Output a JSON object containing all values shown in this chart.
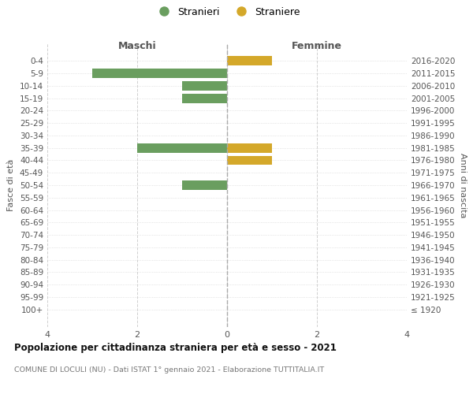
{
  "age_groups": [
    "0-4",
    "5-9",
    "10-14",
    "15-19",
    "20-24",
    "25-29",
    "30-34",
    "35-39",
    "40-44",
    "45-49",
    "50-54",
    "55-59",
    "60-64",
    "65-69",
    "70-74",
    "75-79",
    "80-84",
    "85-89",
    "90-94",
    "95-99",
    "100+"
  ],
  "birth_years": [
    "2016-2020",
    "2011-2015",
    "2006-2010",
    "2001-2005",
    "1996-2000",
    "1991-1995",
    "1986-1990",
    "1981-1985",
    "1976-1980",
    "1971-1975",
    "1966-1970",
    "1961-1965",
    "1956-1960",
    "1951-1955",
    "1946-1950",
    "1941-1945",
    "1936-1940",
    "1931-1935",
    "1926-1930",
    "1921-1925",
    "≤ 1920"
  ],
  "maschi_values": [
    0,
    3,
    1,
    1,
    0,
    0,
    0,
    2,
    0,
    0,
    1,
    0,
    0,
    0,
    0,
    0,
    0,
    0,
    0,
    0,
    0
  ],
  "femmine_values": [
    1,
    0,
    0,
    0,
    0,
    0,
    0,
    1,
    1,
    0,
    0,
    0,
    0,
    0,
    0,
    0,
    0,
    0,
    0,
    0,
    0
  ],
  "maschi_color": "#6a9e5f",
  "femmine_color": "#d4a82a",
  "title": "Popolazione per cittadinanza straniera per età e sesso - 2021",
  "subtitle": "COMUNE DI LOCULI (NU) - Dati ISTAT 1° gennaio 2021 - Elaborazione TUTTITALIA.IT",
  "xlabel_left": "Maschi",
  "xlabel_right": "Femmine",
  "ylabel_left": "Fasce di età",
  "ylabel_right": "Anni di nascita",
  "legend_stranieri": "Stranieri",
  "legend_straniere": "Straniere",
  "xlim": 4,
  "background_color": "#ffffff",
  "grid_color": "#d0d0d0",
  "dashed_line_color": "#aaaaaa"
}
